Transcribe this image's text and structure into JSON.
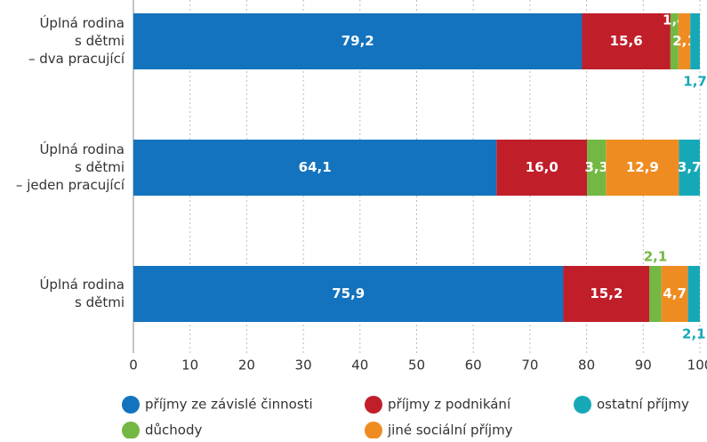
{
  "chart_data": {
    "type": "stacked_barh",
    "categories": [
      [
        "Úplná rodina",
        "s dětmi",
        "– dva pracující"
      ],
      [
        "Úplná rodina",
        "s dětmi",
        "– jeden pracující"
      ],
      [
        "Úplná rodina",
        "s dětmi"
      ]
    ],
    "series": [
      {
        "name": "příjmy ze závislé činnosti",
        "color": "#1473be",
        "values": [
          79.2,
          64.1,
          75.9
        ],
        "value_labels": [
          "79,2",
          "64,1",
          "75,9"
        ]
      },
      {
        "name": "příjmy z podnikání",
        "color": "#c01f2a",
        "values": [
          15.6,
          16.0,
          15.2
        ],
        "value_labels": [
          "15,6",
          "16,0",
          "15,2"
        ]
      },
      {
        "name": "důchody",
        "color": "#72b843",
        "values": [
          1.4,
          3.3,
          2.1
        ],
        "value_labels": [
          "1,4",
          "3,3",
          "2,1"
        ]
      },
      {
        "name": "jiné sociální příjmy",
        "color": "#ef8c21",
        "values": [
          2.1,
          12.9,
          4.7
        ],
        "value_labels": [
          "2,1",
          "12,9",
          "4,7"
        ]
      },
      {
        "name": "ostatní příjmy",
        "color": "#17a8b8",
        "values": [
          1.7,
          3.7,
          2.1
        ],
        "value_labels": [
          "1,7",
          "3,7",
          "2,1"
        ]
      }
    ],
    "xlim": [
      0,
      100
    ],
    "xticks": [
      0,
      10,
      20,
      30,
      40,
      50,
      60,
      70,
      80,
      90,
      100
    ],
    "grid": true
  }
}
